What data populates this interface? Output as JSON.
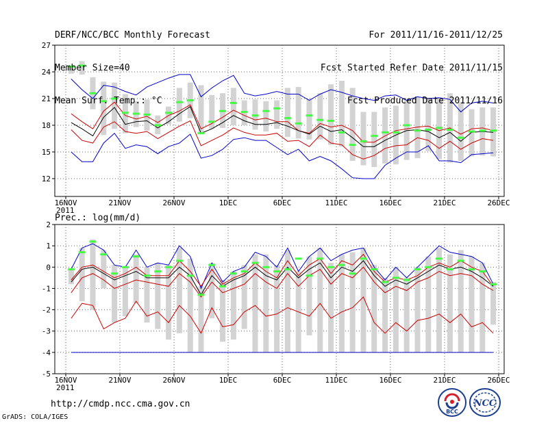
{
  "header": {
    "left": [
      "DERF/NCC/BCC Monthly Forecast",
      "Member Size=40",
      "Mean Surf. Temp.: °C"
    ],
    "right": [
      "For 2011/11/16-2011/12/25",
      "Fcst Started Refer Date 2011/11/15",
      "Fcst Produced Date 2011/11/16"
    ]
  },
  "footer": {
    "url": "http://cmdp.ncc.cma.gov.cn",
    "grads": "GrADS: COLA/IGES"
  },
  "logos": {
    "bcc": "BCC",
    "ncc": "NCC"
  },
  "colors": {
    "envelope": "#0000cc",
    "percentile": "#cc0000",
    "median": "#000000",
    "box": "#d3d3d3",
    "ensemble": "#44ff44",
    "grid": "#666666"
  },
  "chart_data": [
    {
      "type": "line",
      "title": "Mean Surf. Temp.: °C",
      "xlabel": "",
      "ylabel": "°C",
      "x_start": "2011-11-16",
      "days": 40,
      "x_ticks": [
        {
          "day": 0,
          "label": "16NOV",
          "sub": "2011"
        },
        {
          "day": 5,
          "label": "21NOV"
        },
        {
          "day": 10,
          "label": "26NOV"
        },
        {
          "day": 15,
          "label": "1DEC"
        },
        {
          "day": 20,
          "label": "6DEC"
        },
        {
          "day": 25,
          "label": "11DEC"
        },
        {
          "day": 30,
          "label": "16DEC"
        },
        {
          "day": 35,
          "label": "21DEC"
        },
        {
          "day": 40,
          "label": "26DEC"
        }
      ],
      "ylim": [
        10,
        27
      ],
      "y_ticks": [
        12,
        15,
        18,
        21,
        24,
        27
      ],
      "series": [
        {
          "name": "ensemble_max",
          "role": "envelope_top",
          "values": [
            23.2,
            22.0,
            21.0,
            22.5,
            22.3,
            21.8,
            21.4,
            22.3,
            22.8,
            23.3,
            23.7,
            23.7,
            21.2,
            22.2,
            23.0,
            23.6,
            21.6,
            21.3,
            21.5,
            21.8,
            21.5,
            21.5,
            20.8,
            21.5,
            22.0,
            21.7,
            21.3,
            21.0,
            20.8,
            21.3,
            21.4,
            20.8,
            21.2,
            21.0,
            21.1,
            20.9,
            19.5,
            20.5,
            20.7,
            20.5
          ]
        },
        {
          "name": "percentile_hi",
          "role": "upper",
          "values": [
            19.3,
            18.4,
            17.6,
            19.6,
            20.6,
            19.1,
            18.7,
            19.0,
            18.3,
            19.1,
            19.6,
            20.3,
            17.6,
            18.2,
            18.9,
            19.7,
            19.1,
            18.6,
            18.8,
            18.4,
            18.4,
            17.4,
            17.1,
            18.2,
            17.8,
            18.0,
            17.4,
            16.1,
            16.1,
            16.8,
            17.4,
            17.6,
            17.8,
            17.9,
            17.4,
            17.7,
            17.0,
            17.6,
            17.7,
            17.4
          ]
        },
        {
          "name": "median",
          "role": "median",
          "values": [
            18.3,
            17.6,
            16.8,
            18.9,
            20.0,
            18.1,
            18.4,
            18.5,
            17.7,
            18.4,
            19.3,
            20.1,
            17.1,
            17.6,
            18.3,
            19.1,
            18.5,
            18.1,
            18.1,
            18.3,
            17.9,
            17.4,
            17.0,
            17.9,
            17.3,
            17.5,
            16.6,
            15.6,
            15.6,
            16.3,
            16.9,
            17.4,
            17.5,
            17.3,
            16.6,
            17.2,
            16.2,
            17.2,
            17.3,
            17.2
          ]
        },
        {
          "name": "percentile_lo",
          "role": "lower",
          "values": [
            17.5,
            16.3,
            16.0,
            17.8,
            18.4,
            17.3,
            17.1,
            17.3,
            16.5,
            17.2,
            17.9,
            18.5,
            15.7,
            16.3,
            16.9,
            17.7,
            17.2,
            16.9,
            16.9,
            17.1,
            16.2,
            16.3,
            15.6,
            16.9,
            16.0,
            15.8,
            14.7,
            14.2,
            14.6,
            15.4,
            15.7,
            15.8,
            16.6,
            16.3,
            15.4,
            16.2,
            15.3,
            16.0,
            16.5,
            16.3
          ]
        },
        {
          "name": "ensemble_min",
          "role": "envelope_bottom",
          "values": [
            15.0,
            13.9,
            13.9,
            16.0,
            17.1,
            15.4,
            15.8,
            15.6,
            14.8,
            15.6,
            16.0,
            17.0,
            14.3,
            14.6,
            15.3,
            16.4,
            16.6,
            16.3,
            16.3,
            15.5,
            14.7,
            15.3,
            14.0,
            14.5,
            14.0,
            13.1,
            12.1,
            12.0,
            12.0,
            13.5,
            14.3,
            15.0,
            15.0,
            15.7,
            14.0,
            14.0,
            13.8,
            14.7,
            14.8,
            14.9
          ]
        },
        {
          "name": "box_top",
          "role": "box_top",
          "values": [
            24.5,
            25.2,
            23.4,
            22.9,
            22.8,
            21.5,
            20.7,
            20.9,
            19.1,
            20.1,
            22.2,
            22.8,
            22.5,
            21.4,
            21.6,
            22.2,
            20.8,
            20.9,
            20.7,
            20.8,
            22.2,
            22.3,
            20.9,
            21.6,
            22.6,
            23.0,
            22.2,
            19.5,
            19.5,
            20.0,
            20.2,
            20.9,
            21.2,
            21.1,
            21.0,
            21.6,
            20.6,
            19.8,
            20.0,
            20.0
          ]
        },
        {
          "name": "box_bottom",
          "role": "box_bottom",
          "values": [
            23.8,
            23.7,
            19.8,
            16.9,
            17.6,
            17.1,
            17.8,
            17.4,
            17.0,
            18.1,
            18.4,
            18.8,
            17.0,
            17.6,
            17.7,
            18.0,
            18.0,
            17.5,
            17.3,
            17.6,
            16.7,
            16.5,
            16.4,
            16.4,
            15.8,
            15.6,
            14.0,
            13.5,
            13.3,
            13.7,
            13.6,
            14.1,
            14.3,
            15.1,
            14.2,
            13.8,
            14.0,
            14.5,
            14.6,
            14.5
          ]
        },
        {
          "name": "ensemble_mean",
          "role": "marker",
          "values": [
            24.6,
            24.7,
            21.6,
            20.7,
            21.0,
            19.4,
            19.3,
            19.2,
            18.0,
            19.4,
            20.6,
            20.8,
            17.1,
            18.4,
            19.6,
            20.5,
            19.5,
            19.1,
            19.6,
            19.9,
            18.8,
            18.2,
            19.1,
            18.6,
            18.5,
            17.2,
            15.8,
            16.2,
            16.8,
            17.2,
            17.2,
            18.0,
            17.4,
            17.5,
            17.7,
            17.5,
            16.6,
            17.3,
            17.4,
            17.4
          ]
        }
      ]
    },
    {
      "type": "line",
      "title": "Prec.: log(mm/d)",
      "xlabel": "",
      "ylabel": "log(mm/d)",
      "x_start": "2011-11-16",
      "days": 40,
      "x_ticks": [
        {
          "day": 0,
          "label": "16NOV",
          "sub": "2011"
        },
        {
          "day": 5,
          "label": "21NOV"
        },
        {
          "day": 10,
          "label": "26NOV"
        },
        {
          "day": 15,
          "label": "1DEC"
        },
        {
          "day": 20,
          "label": "6DEC"
        },
        {
          "day": 25,
          "label": "11DEC"
        },
        {
          "day": 30,
          "label": "16DEC"
        },
        {
          "day": 35,
          "label": "21DEC"
        },
        {
          "day": 40,
          "label": "26DEC"
        }
      ],
      "ylim": [
        -5,
        2
      ],
      "y_ticks": [
        -5,
        -4,
        -3,
        -2,
        -1,
        0,
        1,
        2
      ],
      "series": [
        {
          "name": "ensemble_max",
          "role": "envelope_top",
          "values": [
            -0.1,
            0.9,
            1.1,
            0.8,
            0.1,
            0.0,
            0.8,
            0.0,
            0.2,
            0.1,
            1.0,
            0.5,
            -1.0,
            0.2,
            -0.7,
            -0.2,
            0.0,
            0.7,
            0.5,
            0.0,
            0.9,
            -0.2,
            0.5,
            0.9,
            0.3,
            0.6,
            0.8,
            0.9,
            0.0,
            -0.6,
            0.0,
            -0.5,
            0.0,
            0.5,
            1.0,
            0.7,
            0.6,
            0.5,
            0.2,
            -0.8
          ]
        },
        {
          "name": "percentile_hi",
          "role": "upper",
          "values": [
            -0.6,
            0.0,
            0.1,
            -0.2,
            -0.5,
            -0.3,
            0.0,
            -0.4,
            -0.4,
            -0.4,
            0.3,
            -0.2,
            -0.9,
            -0.1,
            -0.8,
            -0.5,
            -0.3,
            0.2,
            -0.2,
            -0.5,
            0.3,
            -0.4,
            0.1,
            0.4,
            -0.3,
            0.3,
            0.1,
            0.6,
            -0.2,
            -0.7,
            -0.5,
            -0.6,
            -0.4,
            0.0,
            0.2,
            0.0,
            0.3,
            0.0,
            -0.2,
            -0.9
          ]
        },
        {
          "name": "median",
          "role": "median",
          "values": [
            -0.7,
            -0.1,
            0.0,
            -0.3,
            -0.6,
            -0.4,
            -0.2,
            -0.5,
            -0.5,
            -0.5,
            0.0,
            -0.4,
            -1.3,
            -0.4,
            -0.9,
            -0.6,
            -0.4,
            0.0,
            -0.4,
            -0.6,
            0.0,
            -0.5,
            -0.1,
            0.2,
            -0.5,
            0.0,
            -0.2,
            0.3,
            -0.4,
            -0.9,
            -0.6,
            -0.8,
            -0.5,
            -0.2,
            0.1,
            -0.1,
            0.0,
            -0.2,
            -0.5,
            -0.9
          ]
        },
        {
          "name": "percentile_lo",
          "role": "lower",
          "values": [
            -1.2,
            -0.5,
            -0.3,
            -0.6,
            -1.0,
            -0.8,
            -0.6,
            -0.7,
            -0.8,
            -0.9,
            -0.3,
            -0.7,
            -1.4,
            -0.7,
            -1.2,
            -1.0,
            -0.8,
            -0.3,
            -0.7,
            -1.0,
            -0.3,
            -0.9,
            -0.4,
            -0.1,
            -0.8,
            -0.3,
            -0.5,
            0.0,
            -0.7,
            -1.2,
            -0.9,
            -1.1,
            -0.7,
            -0.5,
            -0.2,
            -0.4,
            -0.3,
            -0.4,
            -0.8,
            -1.1
          ]
        },
        {
          "name": "percentile_lo2",
          "role": "lower2",
          "values": [
            -2.4,
            -1.7,
            -1.8,
            -2.9,
            -2.6,
            -2.4,
            -1.6,
            -2.3,
            -2.1,
            -2.6,
            -1.8,
            -2.3,
            -3.1,
            -1.9,
            -2.8,
            -2.7,
            -2.1,
            -1.8,
            -2.3,
            -2.2,
            -1.9,
            -2.1,
            -2.3,
            -1.7,
            -2.4,
            -2.1,
            -1.9,
            -1.4,
            -2.6,
            -3.1,
            -2.6,
            -3.0,
            -2.5,
            -2.4,
            -2.2,
            -2.6,
            -2.2,
            -2.8,
            -2.6,
            -3.1
          ]
        },
        {
          "name": "ensemble_min",
          "role": "envelope_bottom",
          "values": [
            -4.0,
            -4.0,
            -4.0,
            -4.0,
            -4.0,
            -4.0,
            -4.0,
            -4.0,
            -4.0,
            -4.0,
            -4.0,
            -4.0,
            -4.0,
            -4.0,
            -4.0,
            -4.0,
            -4.0,
            -4.0,
            -4.0,
            -4.0,
            -4.0,
            -4.0,
            -4.0,
            -4.0,
            -4.0,
            -4.0,
            -4.0,
            -4.0,
            -4.0,
            -4.0,
            -4.0,
            -4.0,
            -4.0,
            -4.0,
            -4.0,
            -4.0,
            -4.0,
            -4.0,
            -4.0,
            -4.0
          ]
        },
        {
          "name": "box_top",
          "role": "box_top",
          "values": [
            -0.1,
            0.9,
            1.3,
            0.8,
            0.1,
            0.0,
            0.6,
            0.0,
            0.2,
            0.1,
            0.9,
            0.4,
            -0.9,
            0.2,
            -0.6,
            -0.2,
            0.1,
            0.6,
            0.6,
            0.1,
            0.8,
            -0.2,
            0.5,
            0.9,
            0.2,
            0.6,
            0.7,
            0.9,
            0.1,
            -0.5,
            0.0,
            -0.5,
            0.0,
            0.5,
            0.9,
            0.6,
            0.8,
            0.5,
            0.2,
            -0.7
          ]
        },
        {
          "name": "box_bottom",
          "role": "box_bottom",
          "values": [
            -0.8,
            -1.6,
            -2.0,
            -1.0,
            -2.6,
            -2.3,
            -1.7,
            -2.6,
            -2.9,
            -3.4,
            -3.1,
            -4.0,
            -4.0,
            -2.4,
            -3.5,
            -3.4,
            -2.9,
            -4.0,
            -4.0,
            -4.0,
            -4.0,
            -4.0,
            -3.2,
            -4.0,
            -4.0,
            -4.0,
            -4.0,
            -4.0,
            -4.0,
            -4.0,
            -4.0,
            -4.0,
            -4.0,
            -4.0,
            -4.0,
            -4.0,
            -4.0,
            -4.0,
            -4.0,
            -2.7
          ]
        },
        {
          "name": "ensemble_mean",
          "role": "marker",
          "values": [
            -0.1,
            0.7,
            1.2,
            0.6,
            -0.3,
            0.0,
            0.5,
            -0.4,
            -0.2,
            0.0,
            0.3,
            -0.4,
            -1.3,
            0.1,
            -0.9,
            -0.3,
            -0.2,
            0.2,
            0.0,
            -0.2,
            -0.1,
            0.4,
            -0.4,
            0.4,
            0.0,
            0.1,
            -0.3,
            0.4,
            -0.1,
            -0.7,
            -0.5,
            -0.6,
            -0.1,
            0.0,
            0.4,
            -0.1,
            0.3,
            -0.1,
            -0.2,
            -0.8
          ]
        }
      ]
    }
  ]
}
